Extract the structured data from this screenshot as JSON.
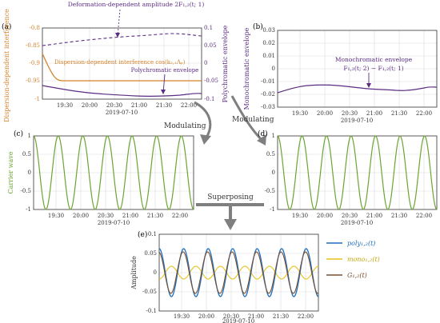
{
  "panels": {
    "a": {
      "letter": "(a)",
      "ylabel_left": "Dispersion-dependent interference",
      "ylabel_right": "Polychromatic envelope",
      "yticks_left": [
        "-0.8",
        "-0.85",
        "-0.9",
        "-0.95",
        "-1"
      ],
      "yticks_right": [
        "0.1",
        "0.05",
        "0",
        "-0.05",
        "-0.1"
      ],
      "xticks": [
        "19:30",
        "20:00",
        "20:30",
        "21:00",
        "21:30",
        "22:00"
      ],
      "xlabel": "2019-07-10",
      "annot_deformation": "Deformation-dependent amplitude 2F₁,₂(t; 1)",
      "annot_dispersion": "Dispersion-dependent interference cos(k₂,₁Λₚ)",
      "annot_poly": "Polychromatic envelope"
    },
    "b": {
      "letter": "(b)",
      "ylabel": "Monochromatic envelope",
      "yticks": [
        "0.03",
        "0.02",
        "0.01",
        "0",
        "-0.01",
        "-0.02",
        "-0.03"
      ],
      "xticks": [
        "19:30",
        "20:00",
        "20:30",
        "21:00",
        "21:30",
        "22:00"
      ],
      "xlabel": "2019-07-10",
      "annot_title": "Monochromatic envelope",
      "annot_formula": "F₁,₂(t; 2) − F₁,₂(t; 1)"
    },
    "c": {
      "letter": "(c)",
      "ylabel": "Carrier wave",
      "yticks": [
        "1",
        "0.5",
        "0",
        "-0.5",
        "-1"
      ],
      "xticks": [
        "19:30",
        "20:00",
        "20:30",
        "21:00",
        "21:30",
        "22:00"
      ],
      "xlabel": "2019-07-10"
    },
    "d": {
      "letter": "(d)",
      "yticks": [
        "1",
        "0.5",
        "0",
        "-0.5",
        "-1"
      ],
      "xticks": [
        "19:30",
        "20:00",
        "20:30",
        "21:00",
        "21:30",
        "22:00"
      ],
      "xlabel": "2019-07-10"
    },
    "e": {
      "letter": "(e)",
      "ylabel": "Amplitude",
      "yticks": [
        "0.1",
        "0.05",
        "0",
        "-0.05",
        "-0.1"
      ],
      "xticks": [
        "19:30",
        "20:00",
        "20:30",
        "21:00",
        "21:30",
        "22:00"
      ],
      "xlabel": "2019-07-10",
      "legend": [
        "poly₁,₂(t)",
        "mono₁,₂(t)",
        "G₁,₂(t)"
      ]
    }
  },
  "flow": {
    "modulating_left": "Modulating",
    "modulating_right": "Modulating",
    "superposing": "Superposing"
  },
  "colors": {
    "orange": "#D4822A",
    "purple": "#5B2C83",
    "green": "#6BA531",
    "blue": "#1F6FBF",
    "yellow": "#E8C21A",
    "brown": "#7A5030",
    "arrow": "#7F7F7F",
    "grid": "#D9D9D9",
    "axis": "#333333"
  }
}
